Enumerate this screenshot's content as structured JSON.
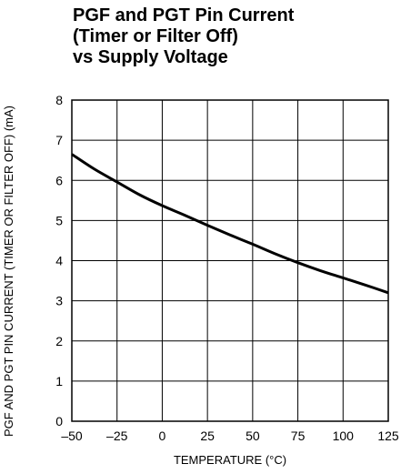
{
  "chart_data": {
    "type": "line",
    "title": [
      "PGF and PGT Pin Current",
      "(Timer or Filter Off)",
      "vs Supply Voltage"
    ],
    "xlabel": "TEMPERATURE (°C)",
    "ylabel": "PGF AND PGT PIN CURRENT (TIMER OR FILTER OFF) (mA)",
    "xlim": [
      -50,
      125
    ],
    "ylim": [
      0,
      8
    ],
    "xticks": [
      -50,
      -25,
      0,
      25,
      50,
      75,
      100,
      125
    ],
    "xtick_labels": [
      "–50",
      "–25",
      "0",
      "25",
      "50",
      "75",
      "100",
      "125"
    ],
    "yticks": [
      0,
      1,
      2,
      3,
      4,
      5,
      6,
      7,
      8
    ],
    "grid": true,
    "series": [
      {
        "x": [
          -50,
          -37.5,
          -25,
          -12.5,
          0,
          12.5,
          25,
          37.5,
          50,
          62.5,
          75,
          87.5,
          100,
          112.5,
          125
        ],
        "y": [
          6.65,
          6.28,
          5.96,
          5.64,
          5.37,
          5.13,
          4.88,
          4.64,
          4.41,
          4.17,
          3.95,
          3.75,
          3.57,
          3.39,
          3.2
        ]
      }
    ]
  }
}
